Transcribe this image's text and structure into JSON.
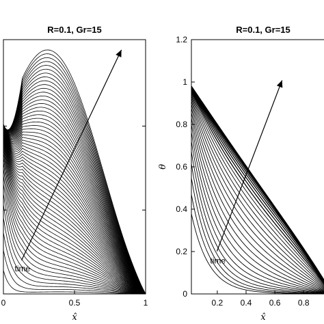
{
  "chart_data": [
    {
      "type": "line",
      "title": "R=0.1, Gr=15",
      "xlabel": "x̂",
      "ylabel": "",
      "xlim": [
        0,
        1
      ],
      "ylim": [
        0,
        1.2
      ],
      "x_ticks": [
        "0",
        "0.5",
        "1"
      ],
      "y_ticks": [],
      "grid": false,
      "legend": "none",
      "curve_family": {
        "count": 60,
        "description_of_shape": "profiles pinned to 0 at x=1; value at x=0 rises then holds near 0.80 of plot height; peak of latest curve near x=0.29",
        "final_curve": {
          "x": [
            0,
            0.1,
            0.2,
            0.29,
            0.4,
            0.5,
            0.6,
            0.7,
            0.8,
            0.9,
            1.0
          ],
          "y": [
            0.8,
            0.99,
            1.12,
            1.18,
            1.16,
            1.08,
            0.93,
            0.74,
            0.51,
            0.26,
            0.0
          ]
        },
        "earliest_curve": {
          "x": [
            0,
            0.02,
            0.04,
            0.06,
            0.1,
            1.0
          ],
          "y": [
            0.32,
            0.12,
            0.04,
            0.01,
            0.0,
            0.0
          ]
        }
      },
      "annotations": [
        {
          "text": "time",
          "arrow_from": [
            0.07,
            0.1
          ],
          "arrow_to": [
            0.83,
            0.96
          ]
        }
      ]
    },
    {
      "type": "line",
      "title": "R=0.1, Gr=15",
      "xlabel": "x̂",
      "ylabel": "θ",
      "xlim": [
        0,
        1
      ],
      "ylim": [
        0,
        1.2
      ],
      "x_ticks": [
        "0.2",
        "0.4",
        "0.6",
        "0.8"
      ],
      "y_ticks": [
        "0",
        "0.2",
        "0.4",
        "0.6",
        "0.8",
        "1",
        "1.2"
      ],
      "grid": false,
      "legend": "none",
      "curve_family": {
        "count": 30,
        "description_of_shape": "temperature profiles, θ=1 at x=0 approaching linear 1−x̂ with time",
        "final_curve": {
          "x": [
            0,
            1
          ],
          "y": [
            1.0,
            0.0
          ]
        },
        "earliest_curve": {
          "x": [
            0,
            0.1,
            0.2,
            0.3,
            0.5,
            0.7,
            1.0
          ],
          "y": [
            0.32,
            0.22,
            0.15,
            0.1,
            0.04,
            0.01,
            0.0
          ]
        }
      },
      "annotations": [
        {
          "text": "time",
          "arrow_from": [
            0.15,
            0.13
          ],
          "arrow_to": [
            0.65,
            0.84
          ]
        }
      ]
    }
  ]
}
